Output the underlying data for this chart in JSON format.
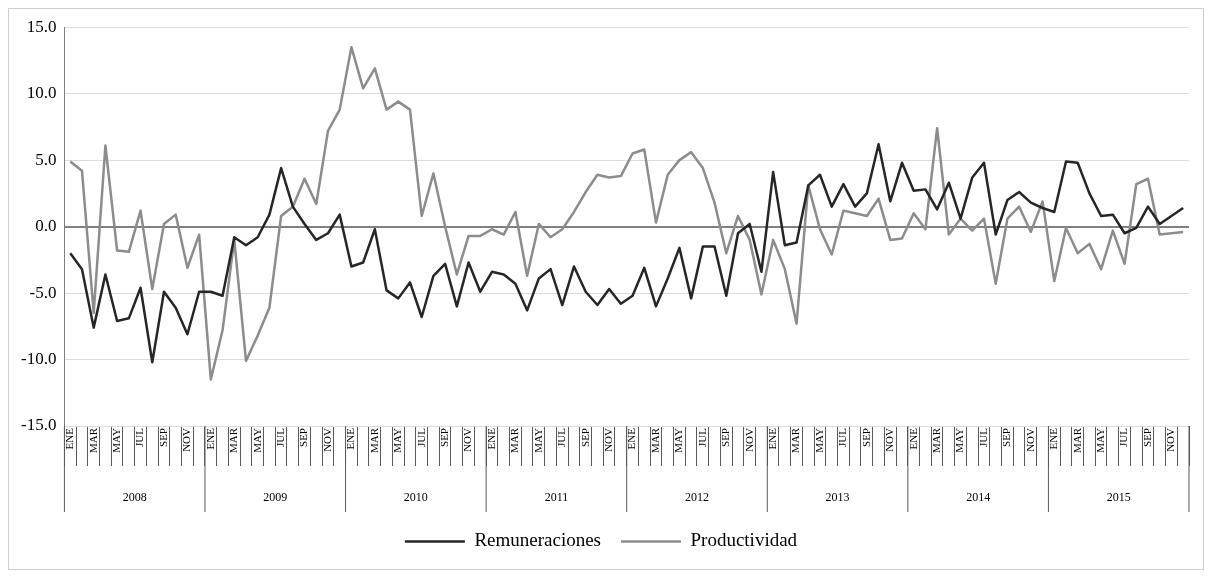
{
  "chart_data": {
    "type": "line",
    "categories": [
      "ENE",
      null,
      "MAR",
      null,
      "MAY",
      null,
      "JUL",
      null,
      "SEP",
      null,
      "NOV",
      null,
      "ENE",
      null,
      "MAR",
      null,
      "MAY",
      null,
      "JUL",
      null,
      "SEP",
      null,
      "NOV",
      null,
      "ENE",
      null,
      "MAR",
      null,
      "MAY",
      null,
      "JUL",
      null,
      "SEP",
      null,
      "NOV",
      null,
      "ENE",
      null,
      "MAR",
      null,
      "MAY",
      null,
      "JUL",
      null,
      "SEP",
      null,
      "NOV",
      null,
      "ENE",
      null,
      "MAR",
      null,
      "MAY",
      null,
      "JUL",
      null,
      "SEP",
      null,
      "NOV",
      null,
      "ENE",
      null,
      "MAR",
      null,
      "MAY",
      null,
      "JUL",
      null,
      "SEP",
      null,
      "NOV",
      null,
      "ENE",
      null,
      "MAR",
      null,
      "MAY",
      null,
      "JUL",
      null,
      "SEP",
      null,
      "NOV",
      null,
      "ENE",
      null,
      "MAR",
      null,
      "MAY",
      null,
      "JUL",
      null,
      "SEP",
      null,
      "NOV",
      null
    ],
    "annotations": [
      "2008",
      "2009",
      "2010",
      "2011",
      "2012",
      "2013",
      "2014",
      "2015"
    ],
    "series": [
      {
        "name": "Remuneraciones",
        "color": "#262626",
        "values": [
          -2.0,
          -3.2,
          -7.6,
          -3.6,
          -7.1,
          -6.9,
          -4.6,
          -10.2,
          -4.9,
          -6.1,
          -8.1,
          -4.9,
          -4.9,
          -5.2,
          -0.8,
          -1.4,
          -0.8,
          0.9,
          4.4,
          1.5,
          0.2,
          -1.0,
          -0.5,
          0.9,
          -3.0,
          -2.7,
          -0.2,
          -4.8,
          -5.4,
          -4.2,
          -6.8,
          -3.7,
          -2.8,
          -6.0,
          -2.7,
          -4.9,
          -3.4,
          -3.6,
          -4.3,
          -6.3,
          -3.9,
          -3.2,
          -5.9,
          -3.0,
          -4.9,
          -5.9,
          -4.7,
          -5.8,
          -5.2,
          -3.1,
          -6.0,
          -3.9,
          -1.6,
          -5.4,
          -1.5,
          -1.5,
          -5.2,
          -0.5,
          0.2,
          -3.4,
          4.1,
          -1.4,
          -1.2,
          3.1,
          3.9,
          1.5,
          3.2,
          1.5,
          2.5,
          6.2,
          1.9,
          4.8,
          2.7,
          2.8,
          1.3,
          3.3,
          0.6,
          3.7,
          4.8,
          -0.6,
          2.0,
          2.6,
          1.8,
          1.4,
          1.1,
          4.9,
          4.8,
          2.5,
          0.8,
          0.9,
          -0.5,
          -0.1,
          1.5,
          0.2,
          0.8,
          1.4
        ]
      },
      {
        "name": "Productividad",
        "color": "#8c8c8c",
        "values": [
          4.9,
          4.2,
          -6.5,
          6.1,
          -1.8,
          -1.9,
          1.2,
          -4.7,
          0.2,
          0.9,
          -3.1,
          -0.6,
          -11.5,
          -7.8,
          -1.0,
          -10.1,
          -8.2,
          -6.1,
          0.8,
          1.5,
          3.6,
          1.7,
          7.2,
          8.8,
          13.5,
          10.4,
          11.9,
          8.8,
          9.4,
          8.8,
          0.8,
          4.0,
          0.0,
          -3.6,
          -0.7,
          -0.7,
          -0.2,
          -0.6,
          1.1,
          -3.7,
          0.2,
          -0.8,
          -0.2,
          1.1,
          2.6,
          3.9,
          3.7,
          3.8,
          5.5,
          5.8,
          0.3,
          3.9,
          5.0,
          5.6,
          4.4,
          1.8,
          -2.0,
          0.8,
          -1.0,
          -5.1,
          -1.0,
          -3.2,
          -7.3,
          3.1,
          -0.2,
          -2.1,
          1.2,
          1.0,
          0.8,
          2.1,
          -1.0,
          -0.9,
          1.0,
          -0.2,
          7.4,
          -0.6,
          0.6,
          -0.3,
          0.6,
          -4.3,
          0.6,
          1.5,
          -0.4,
          1.9,
          -4.1,
          -0.1,
          -2.0,
          -1.3,
          -3.2,
          -0.3,
          -2.8,
          3.2,
          3.6,
          -0.6,
          -0.5,
          -0.4
        ]
      }
    ],
    "ylim": [
      -15,
      15
    ],
    "yticks": [
      {
        "value": -15,
        "label": "-15.0"
      },
      {
        "value": -10,
        "label": "-10.0"
      },
      {
        "value": -5,
        "label": "-5.0"
      },
      {
        "value": 0,
        "label": "0.0"
      },
      {
        "value": 5,
        "label": "5.0"
      },
      {
        "value": 10,
        "label": "10.0"
      },
      {
        "value": 15,
        "label": "15.0"
      }
    ],
    "grid": "y",
    "legend": "bottom",
    "marker": "none",
    "line_style": "solid"
  }
}
